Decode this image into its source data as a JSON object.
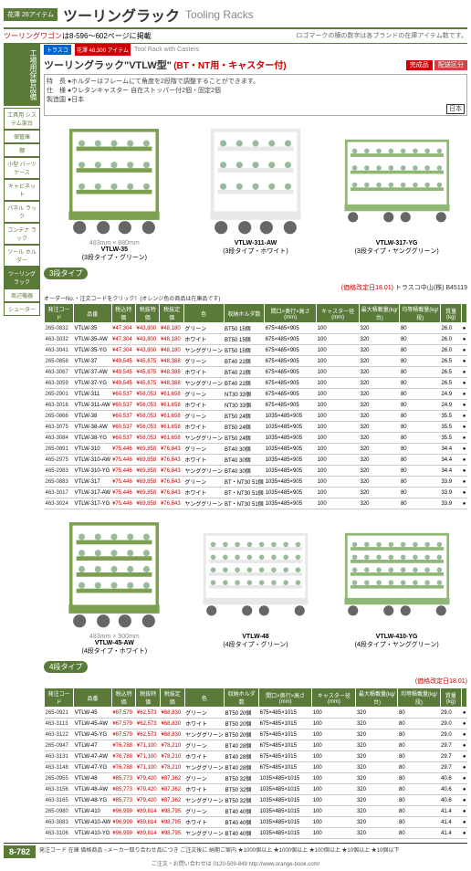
{
  "header": {
    "page_badge": "花澤\n26アイテム",
    "title_jp": "ツーリングラック",
    "title_en": "Tooling Racks"
  },
  "subtitle": {
    "left_red": "ツーリングワゴン",
    "left_rest": "は8-596～602ページに掲載",
    "right": "ロゴマークの横の数字は各ブランドの在庫アイテム数です。"
  },
  "sidebar": {
    "main_tab": "工場用保管設備",
    "boxes": [
      "工具用\nシステム架台",
      "保管庫",
      "棚",
      "小型\nパーツケース",
      "キャビネット",
      "パネル\nラック",
      "コンテナ\nラック",
      "ツール\nホルダー",
      "ツーリング\nラック",
      "周辺機器",
      "シューター"
    ],
    "active_index": 8
  },
  "product": {
    "trusco": "トラスコ",
    "count_badge": "花澤\n48,300\nアイテム",
    "tool_rack_en": "Tool Rack with Casters",
    "title": "ツーリングラック\"VTLW型\"",
    "sub": "(BT・NT用・キャスター付)",
    "complete": "完成品",
    "delivery": "配送区分",
    "spec": "特　長 ●ホルダーはフレームにて角度を2段階で調整することができます。\n仕　様 ●ウレタンキャスター 自在ストッパー付2個・固定2個\n製造国 ●日本",
    "origin_jp": "日本"
  },
  "images3": [
    {
      "dims": "483mm × 880mm",
      "label": "VTLW-35",
      "sub": "(3段タイプ・グリーン)"
    },
    {
      "dims": "",
      "label": "VTLW-311-AW",
      "sub": "(3段タイプ・ホワイト)"
    },
    {
      "dims": "",
      "label": "VTLW-317-YG",
      "sub": "(3段タイプ・ヤンググリーン)"
    }
  ],
  "type3_badge": "3段タイプ",
  "price_note3": "(価格改定日18.01)",
  "truscocode3": "トラスコ中山(株) B45119",
  "table_note": "オーダーNo.・注文コードをクリック！(オレンジ色の商品は在庫品です)",
  "columns": [
    "発注コード",
    "品番",
    "税込特価",
    "税抜特価",
    "税抜定価",
    "色",
    "収納ホルダ数",
    "間口×奥行×高さ(mm)",
    "キャスター径(mm)",
    "最大積載量(kg/台)",
    "均等積載量(kg/段)",
    "質量(kg)"
  ],
  "rows3": [
    [
      "265-0832",
      "VTLW-35",
      "¥47,304",
      "¥43,800",
      "¥48,180",
      "グリーン",
      "BT50 15個",
      "675×485×905",
      "100",
      "320",
      "80",
      "26.0",
      "●"
    ],
    [
      "463-3032",
      "VTLW-35-AW",
      "¥47,304",
      "¥43,800",
      "¥48,180",
      "ホワイト",
      "BT50 15個",
      "675×485×905",
      "100",
      "320",
      "80",
      "26.0",
      "●"
    ],
    [
      "463-3041",
      "VTLW-35-YG",
      "¥47,304",
      "¥43,800",
      "¥48,180",
      "ヤンググリーン",
      "BT50 15個",
      "675×485×905",
      "100",
      "320",
      "80",
      "26.0",
      "●"
    ],
    [
      "265-0858",
      "VTLW-37",
      "¥49,545",
      "¥45,875",
      "¥48,388",
      "グリーン",
      "BT40 21個",
      "675×485×905",
      "100",
      "320",
      "80",
      "26.5",
      "●"
    ],
    [
      "463-3067",
      "VTLW-37-AW",
      "¥49,545",
      "¥45,875",
      "¥48,388",
      "ホワイト",
      "BT40 21個",
      "675×485×905",
      "100",
      "320",
      "80",
      "26.5",
      "●"
    ],
    [
      "463-3059",
      "VTLW-37-YG",
      "¥49,545",
      "¥45,875",
      "¥48,388",
      "ヤンググリーン",
      "BT40 21個",
      "675×485×905",
      "100",
      "320",
      "80",
      "26.5",
      "●"
    ],
    [
      "265-2901",
      "VTLW-311",
      "¥60,537",
      "¥56,053",
      "¥61,658",
      "グリーン",
      "NT30 33個",
      "675×485×905",
      "100",
      "320",
      "80",
      "24.9",
      "●"
    ],
    [
      "463-3016",
      "VTLW-311-AW",
      "¥60,537",
      "¥56,053",
      "¥61,658",
      "ホワイト",
      "NT30 33個",
      "675×485×905",
      "100",
      "320",
      "80",
      "24.9",
      "●"
    ],
    [
      "265-0866",
      "VTLW-38",
      "¥60,537",
      "¥56,053",
      "¥61,658",
      "グリーン",
      "BT50 24個",
      "1035×485×905",
      "100",
      "320",
      "80",
      "35.5",
      "●"
    ],
    [
      "463-3075",
      "VTLW-38-AW",
      "¥60,537",
      "¥56,053",
      "¥61,658",
      "ホワイト",
      "BT50 24個",
      "1035×485×905",
      "100",
      "320",
      "80",
      "35.5",
      "●"
    ],
    [
      "463-3084",
      "VTLW-38-YG",
      "¥60,537",
      "¥56,053",
      "¥61,658",
      "ヤンググリーン",
      "BT50 24個",
      "1035×485×905",
      "100",
      "320",
      "80",
      "35.5",
      "●"
    ],
    [
      "265-0891",
      "VTLW-310",
      "¥75,446",
      "¥69,858",
      "¥76,843",
      "グリーン",
      "BT40 30個",
      "1035×485×905",
      "100",
      "320",
      "80",
      "34.4",
      "●"
    ],
    [
      "465-2975",
      "VTLW-310-AW",
      "¥75,446",
      "¥69,858",
      "¥76,843",
      "ホワイト",
      "BT40 30個",
      "1035×485×905",
      "100",
      "320",
      "80",
      "34.4",
      "●"
    ],
    [
      "465-2983",
      "VTLW-310-YG",
      "¥75,446",
      "¥69,858",
      "¥76,843",
      "ヤンググリーン",
      "BT40 30個",
      "1035×485×905",
      "100",
      "320",
      "80",
      "34.4",
      "●"
    ],
    [
      "265-0883",
      "VTLW-317",
      "¥75,446",
      "¥69,858",
      "¥76,843",
      "グリーン",
      "BT・NT30 51個",
      "1035×485×905",
      "100",
      "320",
      "80",
      "33.9",
      "●"
    ],
    [
      "463-3017",
      "VTLW-317-AW",
      "¥75,446",
      "¥69,858",
      "¥76,843",
      "ホワイト",
      "BT・NT30 51個",
      "1035×485×905",
      "100",
      "320",
      "80",
      "33.9",
      "●"
    ],
    [
      "463-3024",
      "VTLW-317-YG",
      "¥75,446",
      "¥69,858",
      "¥76,843",
      "ヤンググリーン",
      "BT・NT30 51個",
      "1035×485×905",
      "100",
      "320",
      "80",
      "33.9",
      "●"
    ]
  ],
  "images4": [
    {
      "dims": "483mm × 900mm",
      "label": "VTLW-45-AW",
      "sub": "(4段タイプ・ホワイト)"
    },
    {
      "dims": "",
      "label": "VTLW-48",
      "sub": "(4段タイプ・グリーン)"
    },
    {
      "dims": "",
      "label": "VTLW-410-YG",
      "sub": "(4段タイプ・ヤンググリーン)"
    }
  ],
  "type4_badge": "4段タイプ",
  "price_note4": "(価格改定日18.01)",
  "rows4": [
    [
      "265-0921",
      "VTLW-45",
      "¥67,579",
      "¥62,573",
      "¥68,830",
      "グリーン",
      "BT50 20個",
      "675×485×1015",
      "100",
      "320",
      "80",
      "29.0",
      "●"
    ],
    [
      "463-3113",
      "VTLW-45-AW",
      "¥67,579",
      "¥62,573",
      "¥68,830",
      "ホワイト",
      "BT50 20個",
      "675×485×1015",
      "100",
      "320",
      "80",
      "29.0",
      "●"
    ],
    [
      "463-3122",
      "VTLW-45-YG",
      "¥67,579",
      "¥62,573",
      "¥68,830",
      "ヤンググリーン",
      "BT50 20個",
      "675×485×1015",
      "100",
      "320",
      "80",
      "29.0",
      "●"
    ],
    [
      "265-0947",
      "VTLW-47",
      "¥76,788",
      "¥71,100",
      "¥78,210",
      "グリーン",
      "BT40 28個",
      "675×485×1015",
      "100",
      "320",
      "80",
      "29.7",
      "●"
    ],
    [
      "463-3131",
      "VTLW-47-AW",
      "¥76,788",
      "¥71,100",
      "¥78,210",
      "ホワイト",
      "BT40 28個",
      "675×485×1015",
      "100",
      "320",
      "80",
      "29.7",
      "●"
    ],
    [
      "463-3148",
      "VTLW-47-YG",
      "¥76,788",
      "¥71,100",
      "¥78,210",
      "ヤンググリーン",
      "BT40 28個",
      "675×485×1015",
      "100",
      "320",
      "80",
      "29.7",
      "●"
    ],
    [
      "265-0955",
      "VTLW-48",
      "¥85,773",
      "¥79,420",
      "¥87,362",
      "グリーン",
      "BT50 32個",
      "1035×485×1015",
      "100",
      "320",
      "80",
      "40.6",
      "●"
    ],
    [
      "463-3156",
      "VTLW-48-AW",
      "¥85,773",
      "¥79,420",
      "¥87,362",
      "ホワイト",
      "BT50 32個",
      "1035×485×1015",
      "100",
      "320",
      "80",
      "40.6",
      "●"
    ],
    [
      "463-3165",
      "VTLW-48-YG",
      "¥85,773",
      "¥79,420",
      "¥87,362",
      "ヤンググリーン",
      "BT50 32個",
      "1035×485×1015",
      "100",
      "320",
      "80",
      "40.6",
      "●"
    ],
    [
      "265-0980",
      "VTLW-410",
      "¥96,999",
      "¥89,814",
      "¥98,795",
      "グリーン",
      "BT40 40個",
      "1035×485×1015",
      "100",
      "320",
      "80",
      "41.4",
      "●"
    ],
    [
      "463-3083",
      "VTLW-410-AW",
      "¥96,999",
      "¥89,814",
      "¥98,795",
      "ホワイト",
      "BT40 40個",
      "1035×485×1015",
      "100",
      "320",
      "80",
      "41.4",
      "●"
    ],
    [
      "463-3106",
      "VTLW-410-YG",
      "¥96,999",
      "¥89,814",
      "¥98,795",
      "ヤンググリーン",
      "BT40 40個",
      "1035×485×1015",
      "100",
      "320",
      "80",
      "41.4",
      "●"
    ]
  ],
  "footer": {
    "left_page": "8-782",
    "legend": "発注コード 在庫 価格商品 ○メーカー取り合わせ品につき ご注文後に 納期ご案内 ★1000個以上 ★1000個以上 ★100個以上 ★10個以上 ★10個以下",
    "contact": "ご注文・お問い合わせは 0120-509-849",
    "url": "http://www.orange-book.com/"
  },
  "colors": {
    "green": "#5a7a3a",
    "red": "#c00",
    "rack_green": "#7ba050",
    "rack_white": "#e8e8e8",
    "rack_young": "#8fb876"
  }
}
